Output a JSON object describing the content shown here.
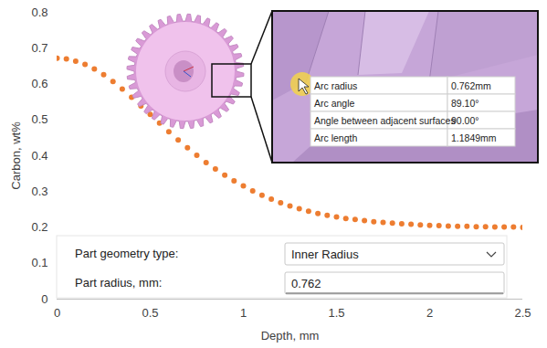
{
  "chart_data": {
    "type": "scatter",
    "marker": "circle",
    "color": "#ED7D31",
    "xlabel": "Depth, mm",
    "ylabel": "Carbon, wt%",
    "xlim": [
      0,
      2.5
    ],
    "ylim": [
      0,
      0.8
    ],
    "xticks": [
      0,
      0.5,
      1,
      1.5,
      2,
      2.5
    ],
    "yticks": [
      0,
      0.1,
      0.2,
      0.3,
      0.4,
      0.5,
      0.6,
      0.7,
      0.8
    ],
    "grid": false,
    "x": [
      0,
      0.05,
      0.1,
      0.15,
      0.2,
      0.25,
      0.3,
      0.35,
      0.4,
      0.45,
      0.5,
      0.55,
      0.6,
      0.65,
      0.7,
      0.75,
      0.8,
      0.85,
      0.9,
      0.95,
      1,
      1.05,
      1.1,
      1.15,
      1.2,
      1.25,
      1.3,
      1.35,
      1.4,
      1.45,
      1.5,
      1.55,
      1.6,
      1.65,
      1.7,
      1.75,
      1.8,
      1.85,
      1.9,
      1.95,
      2,
      2.05,
      2.1,
      2.15,
      2.2,
      2.25,
      2.3,
      2.35,
      2.4,
      2.45,
      2.5
    ],
    "values": [
      0.672,
      0.67,
      0.664,
      0.655,
      0.642,
      0.626,
      0.607,
      0.586,
      0.563,
      0.539,
      0.515,
      0.491,
      0.467,
      0.444,
      0.422,
      0.401,
      0.381,
      0.363,
      0.346,
      0.33,
      0.316,
      0.302,
      0.29,
      0.279,
      0.269,
      0.26,
      0.252,
      0.245,
      0.239,
      0.234,
      0.229,
      0.225,
      0.222,
      0.219,
      0.216,
      0.214,
      0.212,
      0.21,
      0.209,
      0.207,
      0.206,
      0.205,
      0.204,
      0.203,
      0.203,
      0.202,
      0.202,
      0.201,
      0.201,
      0.201,
      0.2
    ],
    "annotations": {
      "inset": [
        {
          "label": "Arc radius",
          "value": "0.762mm"
        },
        {
          "label": "Arc angle",
          "value": "89.10°"
        },
        {
          "label": "Angle between adjacent surfaces",
          "value": "90.00°"
        },
        {
          "label": "Arc length",
          "value": "1.1849mm"
        }
      ],
      "form": [
        {
          "label": "Part geometry type:",
          "value": "Inner Radius"
        },
        {
          "label": "Part radius, mm:",
          "value": "0.762"
        }
      ]
    }
  }
}
